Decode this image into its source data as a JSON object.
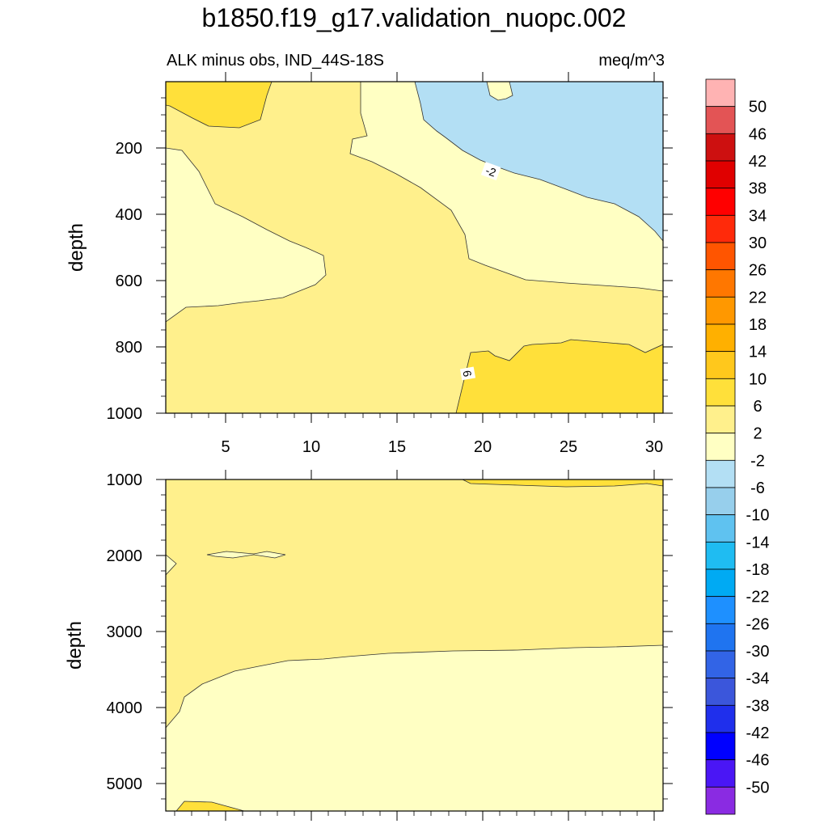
{
  "title": "b1850.f19_g17.validation_nuopc.002",
  "subtitle_left": "ALK minus obs, IND_44S-18S",
  "subtitle_right": "meq/m^3",
  "chart_data": [
    {
      "type": "contour",
      "panel": "top",
      "ylabel": "depth",
      "xlabel": "",
      "xlim": [
        1.5,
        30.5
      ],
      "ylim": [
        1000,
        0
      ],
      "x_ticks": [
        "5",
        "10",
        "15",
        "20",
        "25",
        "30"
      ],
      "y_ticks": [
        "200",
        "400",
        "600",
        "800",
        "1000"
      ],
      "contour_labels": [
        "-2",
        "6"
      ],
      "regions": [
        {
          "range": "2 to 6",
          "color": "#fff08c"
        },
        {
          "range": "6 to 10",
          "color": "#ffe03a"
        },
        {
          "range": "-2 to 2",
          "color": "#ffffc3"
        },
        {
          "range": "-6 to -2",
          "color": "#b3dff4"
        }
      ]
    },
    {
      "type": "contour",
      "panel": "bottom",
      "ylabel": "depth",
      "xlabel": "",
      "xlim": [
        1.5,
        30.5
      ],
      "ylim": [
        5350,
        1000
      ],
      "x_ticks": [],
      "y_ticks": [
        "1000",
        "2000",
        "3000",
        "4000",
        "5000"
      ],
      "regions": [
        {
          "range": "2 to 6",
          "color": "#fff08c"
        },
        {
          "range": "-2 to 2",
          "color": "#ffffc3"
        }
      ]
    }
  ],
  "colorbar": {
    "labels": [
      "50",
      "46",
      "42",
      "38",
      "34",
      "30",
      "26",
      "22",
      "18",
      "14",
      "10",
      "6",
      "2",
      "-2",
      "-6",
      "-10",
      "-14",
      "-18",
      "-22",
      "-26",
      "-30",
      "-34",
      "-38",
      "-42",
      "-46",
      "-50"
    ],
    "colors": [
      "#ffb3b3",
      "#e35455",
      "#cd1010",
      "#e00000",
      "#ff0000",
      "#ff2a0a",
      "#ff5500",
      "#ff7700",
      "#ff9800",
      "#ffb000",
      "#ffc81c",
      "#ffe03a",
      "#fff08c",
      "#ffffc3",
      "#b3dff4",
      "#97cfec",
      "#5fc2f0",
      "#1fbcf2",
      "#00aaf3",
      "#1e90ff",
      "#1f74f0",
      "#3264e6",
      "#3b56db",
      "#1f2fec",
      "#0000ff",
      "#4a16f5",
      "#8a2be2"
    ]
  }
}
